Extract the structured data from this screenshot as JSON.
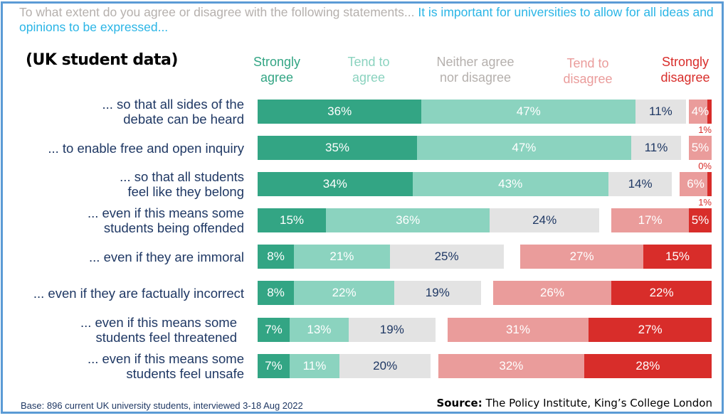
{
  "title": {
    "question": "To what extent do you agree or disagree with the following statements...",
    "statement": "It is important for universities to allow for all ideas and opinions to be expressed..."
  },
  "subtitle": "(UK student data)",
  "footer": {
    "base": "Base: 896 current UK university students, interviewed 3-18 Aug 2022",
    "source_label": "Source:",
    "source_text": "The Policy Institute, King’s College London"
  },
  "colors": {
    "strongly_agree": "#33a584",
    "tend_agree": "#8bd3bf",
    "neither": "#e3e3e3",
    "tend_disagree": "#ea9c9b",
    "strongly_disagree": "#d82d2a"
  },
  "chart_data": {
    "type": "bar",
    "orientation": "horizontal-diverging-stacked",
    "title": "It is important for universities to allow for all ideas and opinions to be expressed...",
    "unit": "%",
    "legend_position": "top",
    "series": [
      {
        "key": "strongly_agree",
        "name": "Strongly agree",
        "values": [
          36,
          35,
          34,
          15,
          8,
          8,
          7,
          7
        ]
      },
      {
        "key": "tend_agree",
        "name": "Tend to agree",
        "values": [
          47,
          47,
          43,
          36,
          21,
          22,
          13,
          11
        ]
      },
      {
        "key": "neither",
        "name": "Neither agree nor disagree",
        "values": [
          11,
          11,
          14,
          24,
          25,
          19,
          19,
          20
        ]
      },
      {
        "key": "tend_disagree",
        "name": "Tend to disagree",
        "values": [
          4,
          5,
          6,
          17,
          27,
          26,
          31,
          32
        ]
      },
      {
        "key": "strongly_disagree",
        "name": "Strongly disagree",
        "values": [
          1,
          0,
          1,
          5,
          15,
          22,
          27,
          28
        ]
      }
    ],
    "categories": [
      "... so that all sides of the debate can be heard",
      "... to enable free and open inquiry",
      "... so that all students feel like they belong",
      "... even if this means some students being offended",
      "... even if they are immoral",
      "... even if they are factually incorrect",
      "... even if this means some students feel threatened",
      "... even if this means some students feel unsafe"
    ],
    "category_lines": [
      [
        "... so that all sides of the",
        "debate can be heard"
      ],
      [
        "... to enable free and open inquiry"
      ],
      [
        "... so that all students",
        "feel like they belong"
      ],
      [
        "... even if this means some",
        "students being offended"
      ],
      [
        "... even if they are immoral"
      ],
      [
        "... even if they are factually incorrect"
      ],
      [
        "... even if this means some",
        "students feel threatened"
      ],
      [
        "... even if this means some",
        "students feel unsafe"
      ]
    ],
    "legend_lines": [
      [
        "Strongly",
        "agree"
      ],
      [
        "Tend to",
        "agree"
      ],
      [
        "Neither agree",
        "nor disagree"
      ],
      [
        "Tend to",
        "disagree"
      ],
      [
        "Strongly",
        "disagree"
      ]
    ]
  }
}
